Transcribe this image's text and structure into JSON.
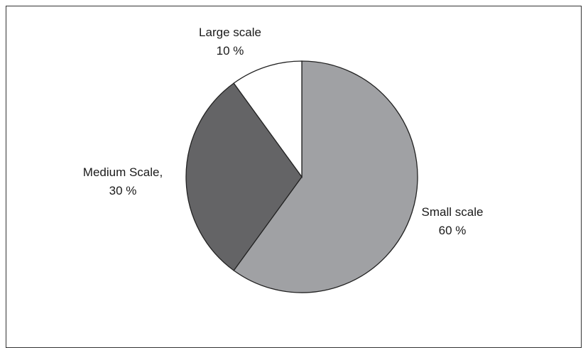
{
  "chart_data": {
    "type": "pie",
    "title": "",
    "slices": [
      {
        "name": "Small scale",
        "value": 60,
        "label_line1": "Small scale",
        "label_line2": "60 %",
        "color": "#a0a1a4"
      },
      {
        "name": "Medium Scale",
        "value": 30,
        "label_line1": "Medium Scale,",
        "label_line2": "30 %",
        "color": "#646466"
      },
      {
        "name": "Large scale",
        "value": 10,
        "label_line1": "Large scale",
        "label_line2": "10 %",
        "color": "#ffffff"
      }
    ],
    "start_angle": "12 o'clock",
    "direction": "clockwise",
    "legend": "none",
    "grid": false
  }
}
